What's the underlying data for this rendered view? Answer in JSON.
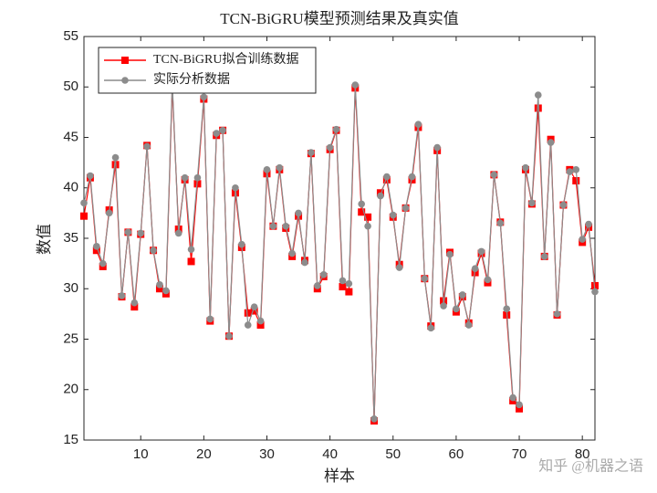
{
  "chart_data": {
    "type": "line",
    "title": "TCN-BiGRU模型预测结果及真实值",
    "x_label": "样本",
    "y_label": "数值",
    "x": [
      1,
      2,
      3,
      4,
      5,
      6,
      7,
      8,
      9,
      10,
      11,
      12,
      13,
      14,
      15,
      16,
      17,
      18,
      19,
      20,
      21,
      22,
      23,
      24,
      25,
      26,
      27,
      28,
      29,
      30,
      31,
      32,
      33,
      34,
      35,
      36,
      37,
      38,
      39,
      40,
      41,
      42,
      43,
      44,
      45,
      46,
      47,
      48,
      49,
      50,
      51,
      52,
      53,
      54,
      55,
      56,
      57,
      58,
      59,
      60,
      61,
      62,
      63,
      64,
      65,
      66,
      67,
      68,
      69,
      70,
      71,
      72,
      73,
      74,
      75,
      76,
      77,
      78,
      79,
      80,
      81,
      82
    ],
    "series": [
      {
        "name": "TCN-BiGRU拟合训练数据",
        "color": "#ff0000",
        "marker": "square",
        "values": [
          37.2,
          41,
          33.8,
          32.2,
          37.8,
          42.3,
          29.2,
          35.6,
          28.2,
          35.4,
          44.2,
          33.8,
          30,
          29.5,
          50,
          35.9,
          40.8,
          32.7,
          40.4,
          48.8,
          26.8,
          45.2,
          45.7,
          25.3,
          39.5,
          34.1,
          27.6,
          27.8,
          26.4,
          41.4,
          36.2,
          41.8,
          36,
          33.2,
          37.2,
          32.8,
          43.4,
          30,
          31.2,
          43.8,
          45.7,
          30.2,
          29.7,
          49.9,
          37.6,
          37.1,
          16.9,
          39.5,
          40.8,
          37.1,
          32.4,
          38,
          40.8,
          46,
          31,
          26.3,
          43.7,
          28.8,
          33.6,
          27.7,
          29.2,
          26.6,
          31.6,
          33.5,
          30.6,
          41.3,
          36.6,
          27.4,
          18.9,
          18.1,
          41.8,
          38.4,
          47.9,
          33.2,
          44.8,
          27.4,
          38.3,
          41.8,
          40.7,
          34.6,
          36.1,
          30.3
        ]
      },
      {
        "name": "实际分析数据",
        "color": "#8c8c8c",
        "marker": "circle",
        "values": [
          38.5,
          41.2,
          34.2,
          32.5,
          37.5,
          43,
          29.3,
          35.6,
          28.6,
          35.5,
          44.1,
          33.8,
          30.4,
          29.8,
          50.5,
          35.5,
          41,
          33.9,
          41,
          49,
          27,
          45.4,
          45.7,
          25.3,
          40,
          34.4,
          26.4,
          28.2,
          26.8,
          41.8,
          36.2,
          42,
          36.2,
          33.5,
          37.5,
          32.6,
          43.5,
          30.3,
          31.4,
          44,
          45.8,
          30.8,
          30.5,
          50.2,
          38.4,
          36.2,
          17.1,
          39.2,
          41.1,
          37.3,
          32.1,
          38,
          41.1,
          46.3,
          31,
          26.1,
          44,
          28.3,
          33.4,
          28,
          29.4,
          26.4,
          32,
          33.7,
          30.9,
          41.3,
          36.5,
          28,
          19.2,
          18.5,
          42,
          38.5,
          49.2,
          33.2,
          44.5,
          27.5,
          38.3,
          41.6,
          41.8,
          34.9,
          36.4,
          29.7
        ]
      }
    ],
    "xlim": [
      1,
      82
    ],
    "ylim": [
      15,
      55
    ],
    "xticks": [
      10,
      20,
      30,
      40,
      50,
      60,
      70,
      80
    ],
    "yticks": [
      15,
      20,
      25,
      30,
      35,
      40,
      45,
      50,
      55
    ],
    "grid": false,
    "legend": "upper left",
    "watermark": "知乎 @机器之语"
  }
}
